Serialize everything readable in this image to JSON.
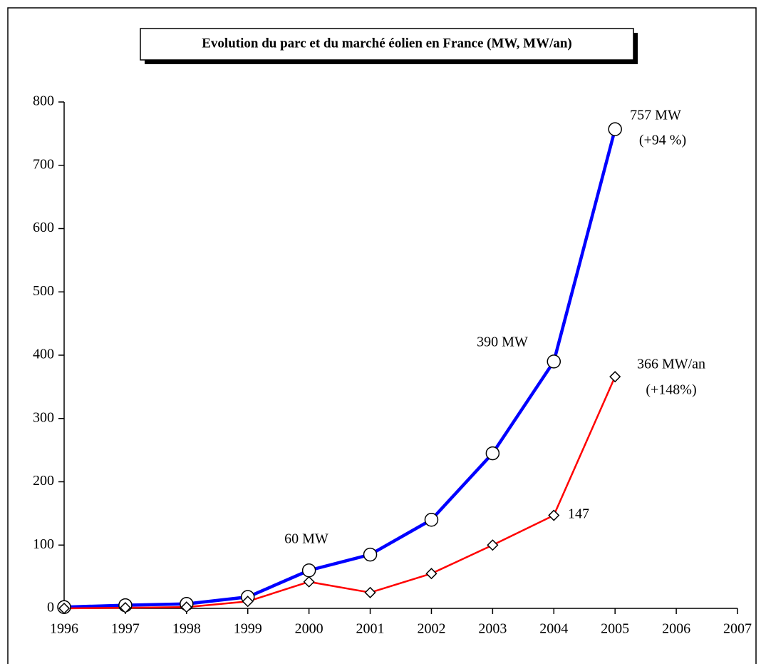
{
  "chart_data": {
    "type": "line",
    "title": "Evolution du parc et du marché éolien en France (MW, MW/an)",
    "x": [
      1996,
      1997,
      1998,
      1999,
      2000,
      2001,
      2002,
      2003,
      2004,
      2005
    ],
    "series": [
      {
        "color": "#0000ff",
        "marker": "circle",
        "values": [
          2,
          5,
          7,
          18,
          60,
          85,
          140,
          245,
          390,
          757
        ]
      },
      {
        "color": "#ff0000",
        "marker": "diamond",
        "values": [
          0,
          1,
          2,
          11,
          42,
          25,
          55,
          100,
          147,
          366
        ]
      }
    ],
    "xlim": [
      1996,
      2007
    ],
    "xticks": [
      1996,
      1997,
      1998,
      1999,
      2000,
      2001,
      2002,
      2003,
      2004,
      2005,
      2006,
      2007
    ],
    "ylim": [
      0,
      800
    ],
    "yticks": [
      0,
      100,
      200,
      300,
      400,
      500,
      600,
      700,
      800
    ],
    "annotations": [
      "757 MW",
      "(+94 %)",
      "390 MW",
      "366 MW/an",
      "(+148%)",
      "147",
      "60 MW"
    ]
  }
}
